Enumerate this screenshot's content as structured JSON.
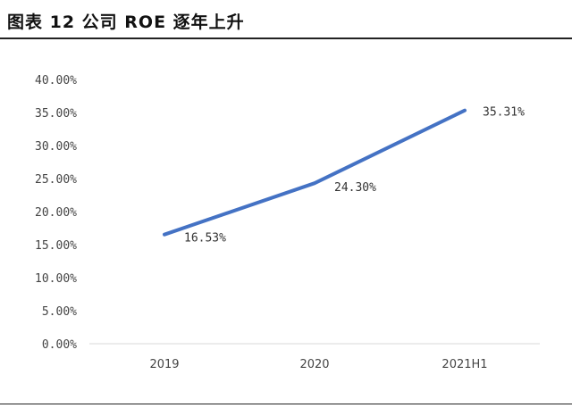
{
  "figure_title": "图表 12 公司 ROE 逐年上升",
  "chart_data": {
    "type": "line",
    "categories": [
      "2019",
      "2020",
      "2021H1"
    ],
    "series": [
      {
        "values": [
          16.53,
          24.3,
          35.31
        ],
        "labels": [
          "16.53%",
          "24.30%",
          "35.31%"
        ],
        "color": "#4472C4"
      }
    ],
    "y_ticks": [
      "0.00%",
      "5.00%",
      "10.00%",
      "15.00%",
      "20.00%",
      "25.00%",
      "30.00%",
      "35.00%",
      "40.00%"
    ],
    "ylim": [
      0,
      40
    ],
    "grid": false,
    "legend": "none",
    "axis_color": "#D9D9D9"
  }
}
